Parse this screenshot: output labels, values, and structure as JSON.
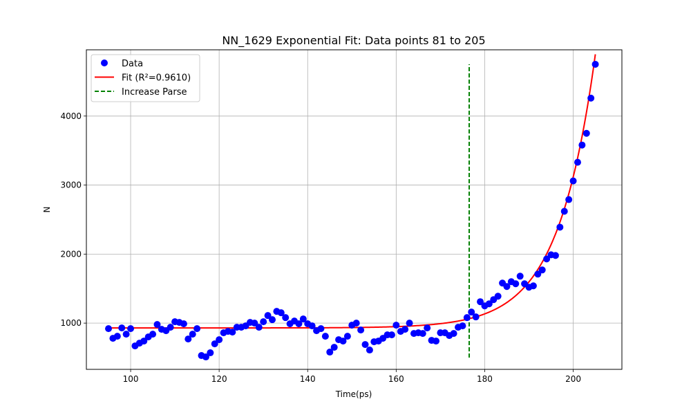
{
  "chart_data": {
    "type": "scatter",
    "title": "NN_1629 Exponential Fit: Data points 81 to 205",
    "xlabel": "Time(ps)",
    "ylabel": "N",
    "xlim": [
      90,
      211
    ],
    "ylim": [
      330,
      4960
    ],
    "xticks": [
      100,
      120,
      140,
      160,
      180,
      200
    ],
    "yticks": [
      1000,
      2000,
      3000,
      4000
    ],
    "grid": true,
    "legend_position": "top-left",
    "legend": [
      {
        "label": "Data",
        "marker": "circle",
        "color": "#0000ff"
      },
      {
        "label": "Fit (R²=0.9610)",
        "marker": "line",
        "color": "#ff0000"
      },
      {
        "label": "Increase Parse",
        "marker": "dashed-line",
        "color": "#008000"
      }
    ],
    "series": [
      {
        "name": "Data",
        "kind": "scatter",
        "color": "#0000ff",
        "x": [
          95,
          96,
          97,
          98,
          99,
          100,
          101,
          102,
          103,
          104,
          105,
          106,
          107,
          108,
          109,
          110,
          111,
          112,
          113,
          114,
          115,
          116,
          117,
          118,
          119,
          120,
          121,
          122,
          123,
          124,
          125,
          126,
          127,
          128,
          129,
          130,
          131,
          132,
          133,
          134,
          135,
          136,
          137,
          138,
          139,
          140,
          141,
          142,
          143,
          144,
          145,
          146,
          147,
          148,
          149,
          150,
          151,
          152,
          153,
          154,
          155,
          156,
          157,
          158,
          159,
          160,
          161,
          162,
          163,
          164,
          165,
          166,
          167,
          168,
          169,
          170,
          171,
          172,
          173,
          174,
          175,
          176,
          177,
          178,
          179,
          180,
          181,
          182,
          183,
          184,
          185,
          186,
          187,
          188,
          189,
          190,
          191,
          192,
          193,
          194,
          195,
          196,
          197,
          198,
          199,
          200,
          201,
          202,
          203,
          204,
          205
        ],
        "y": [
          920,
          780,
          810,
          930,
          840,
          920,
          670,
          710,
          740,
          800,
          840,
          980,
          910,
          890,
          940,
          1020,
          1010,
          990,
          770,
          840,
          920,
          530,
          510,
          570,
          700,
          760,
          860,
          880,
          870,
          940,
          940,
          960,
          1010,
          1000,
          940,
          1020,
          1110,
          1050,
          1170,
          1150,
          1080,
          990,
          1030,
          990,
          1060,
          990,
          960,
          890,
          920,
          810,
          580,
          650,
          760,
          740,
          810,
          970,
          1000,
          900,
          690,
          610,
          730,
          740,
          780,
          830,
          830,
          970,
          880,
          910,
          1000,
          850,
          860,
          850,
          930,
          750,
          740,
          860,
          860,
          820,
          850,
          940,
          960,
          1080,
          1160,
          1090,
          1310,
          1250,
          1280,
          1340,
          1390,
          1580,
          1530,
          1600,
          1570,
          1680,
          1570,
          1520,
          1540,
          1710,
          1770,
          1930,
          1990,
          1980,
          2390,
          2620,
          2790,
          3060,
          3330,
          3580,
          3750,
          4260,
          4750
        ]
      },
      {
        "name": "Fit (R²=0.9610)",
        "kind": "fit",
        "color": "#ff0000",
        "model": "y = a * exp(b * (x - x0)) + c",
        "a": 62,
        "b": 0.1188,
        "x0": 170,
        "c": 930,
        "x_range": [
          95,
          205
        ]
      },
      {
        "name": "Increase Parse",
        "kind": "vline",
        "color": "#008000",
        "x": 176.5,
        "y_range": [
          500,
          4750
        ]
      }
    ]
  }
}
